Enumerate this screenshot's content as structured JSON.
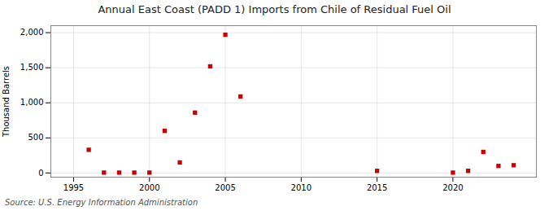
{
  "chart_data": {
    "type": "scatter",
    "title": "Annual East Coast (PADD 1) Imports from Chile of Residual Fuel Oil",
    "ylabel": "Thousand Barrels",
    "source": "Source: U.S. Energy Information Administration",
    "x": [
      1996,
      1997,
      1998,
      1999,
      2000,
      2001,
      2002,
      2003,
      2004,
      2005,
      2006,
      2015,
      2020,
      2021,
      2022,
      2023,
      2024
    ],
    "values": [
      330,
      5,
      5,
      5,
      5,
      600,
      150,
      860,
      1520,
      1970,
      1090,
      30,
      5,
      30,
      300,
      100,
      110
    ],
    "color": "#cc0000",
    "marker": "square",
    "xlim": [
      1993.5,
      2025.5
    ],
    "ylim": [
      -60,
      2100
    ],
    "xticks": [
      1995,
      2000,
      2005,
      2010,
      2015,
      2020
    ],
    "yticks": [
      0,
      500,
      {
        "value": 1000,
        "label": "1,000"
      },
      {
        "value": 1500,
        "label": "1,500"
      },
      {
        "value": 2000,
        "label": "2,000"
      }
    ],
    "grid": true
  }
}
